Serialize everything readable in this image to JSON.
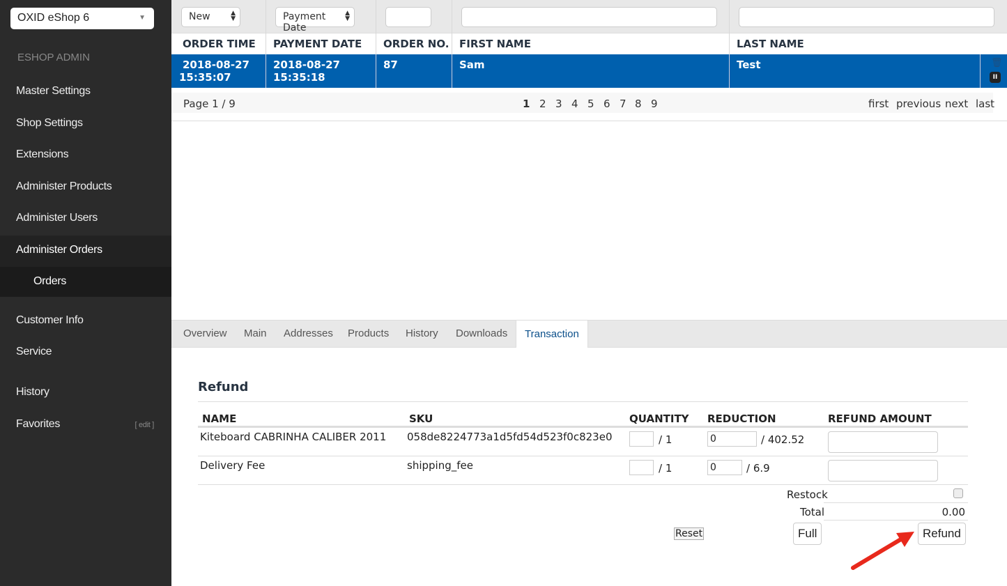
{
  "sidebar": {
    "shop_select": "OXID eShop 6",
    "heading": "ESHOP ADMIN",
    "items": [
      "Master Settings",
      "Shop Settings",
      "Extensions",
      "Administer Products",
      "Administer Users",
      "Administer Orders",
      "Orders",
      "Customer Info",
      "Service",
      "History",
      "Favorites"
    ],
    "edit_label": "[ edit ]"
  },
  "filters": {
    "status": "New",
    "date_type": "Payment Date",
    "order_no": "",
    "first_name": "",
    "last_name": ""
  },
  "table": {
    "headers": [
      "ORDER TIME",
      "PAYMENT DATE",
      "ORDER NO.",
      "FIRST NAME",
      "LAST NAME"
    ],
    "row": {
      "order_time_date": "2018-08-27",
      "order_time_time": "15:35:07",
      "payment_date": "2018-08-27",
      "payment_time": "15:35:18",
      "order_no": "87",
      "first_name": "Sam",
      "last_name": "Test"
    }
  },
  "pager": {
    "label": "Page 1 / 9",
    "pages": [
      "1",
      "2",
      "3",
      "4",
      "5",
      "6",
      "7",
      "8",
      "9"
    ],
    "first": "first",
    "previous": "previous",
    "next": "next",
    "last": "last"
  },
  "tabs": [
    "Overview",
    "Main",
    "Addresses",
    "Products",
    "History",
    "Downloads",
    "Transaction"
  ],
  "refund": {
    "title": "Refund",
    "headers": [
      "NAME",
      "SKU",
      "QUANTITY",
      "REDUCTION",
      "REFUND AMOUNT"
    ],
    "items": [
      {
        "name": "Kiteboard CABRINHA CALIBER 2011",
        "sku": "058de8224773a1d5fd54d523f0c823e0",
        "qty_total": "/ 1",
        "reduction": "0",
        "reduction_total": "/ 402.52"
      },
      {
        "name": "Delivery Fee",
        "sku": "shipping_fee",
        "qty_total": "/ 1",
        "reduction": "0",
        "reduction_total": "/ 6.9"
      }
    ],
    "restock_label": "Restock",
    "total_label": "Total",
    "total": "0.00",
    "reset": "Reset",
    "full": "Full",
    "refund_button": "Refund"
  },
  "colors": {
    "selected_row": "#0060ae",
    "sidebar": "#2b2b2b",
    "annotation_arrow": "#e8291c"
  }
}
